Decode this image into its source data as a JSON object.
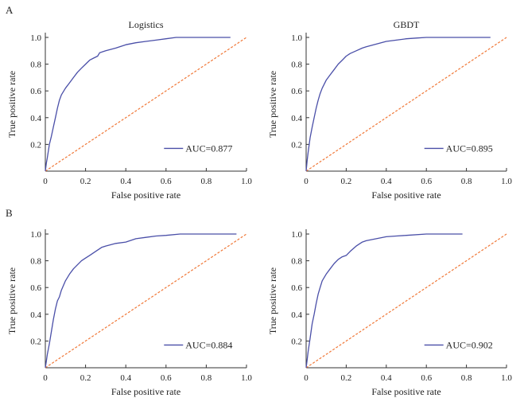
{
  "figure": {
    "panel_labels": [
      "A",
      "B"
    ]
  },
  "colors": {
    "roc_line": "#4a4fa8",
    "diagonal": "#f07838",
    "axis": "#333333",
    "text": "#222222"
  },
  "chart_data": [
    {
      "type": "line",
      "panel": "A",
      "title": "Logistics",
      "xlabel": "False positive rate",
      "ylabel": "True positive rate",
      "xlim": [
        0,
        1.0
      ],
      "ylim": [
        0,
        1.0
      ],
      "xticks": [
        "0",
        "0.2",
        "0.4",
        "0.6",
        "0.8",
        "1.0"
      ],
      "yticks": [
        "0.2",
        "0.4",
        "0.6",
        "0.8",
        "1.0"
      ],
      "grid": false,
      "legend": "bottom-right",
      "series": [
        {
          "name": "AUC=0.877",
          "x": [
            0,
            0.005,
            0.01,
            0.015,
            0.02,
            0.03,
            0.04,
            0.05,
            0.06,
            0.07,
            0.08,
            0.1,
            0.12,
            0.14,
            0.16,
            0.18,
            0.2,
            0.22,
            0.24,
            0.26,
            0.27,
            0.3,
            0.35,
            0.4,
            0.45,
            0.5,
            0.55,
            0.6,
            0.65,
            0.7,
            0.8,
            0.92
          ],
          "y": [
            0,
            0.06,
            0.1,
            0.15,
            0.2,
            0.26,
            0.33,
            0.4,
            0.47,
            0.53,
            0.57,
            0.62,
            0.66,
            0.7,
            0.74,
            0.77,
            0.8,
            0.83,
            0.845,
            0.86,
            0.885,
            0.9,
            0.92,
            0.945,
            0.96,
            0.97,
            0.98,
            0.99,
            1.0,
            1.0,
            1.0,
            1.0
          ]
        },
        {
          "name": "",
          "x": [
            0,
            1.0
          ],
          "y": [
            0,
            1.0
          ]
        }
      ]
    },
    {
      "type": "line",
      "panel": "",
      "title": "GBDT",
      "xlabel": "False positive rate",
      "ylabel": "True positive rate",
      "xlim": [
        0,
        1.0
      ],
      "ylim": [
        0,
        1.0
      ],
      "xticks": [
        "0",
        "0.2",
        "0.4",
        "0.6",
        "0.8",
        "1.0"
      ],
      "yticks": [
        "0.2",
        "0.4",
        "0.6",
        "0.8",
        "1.0"
      ],
      "grid": false,
      "legend": "bottom-right",
      "series": [
        {
          "name": "AUC=0.895",
          "x": [
            0,
            0.005,
            0.01,
            0.02,
            0.03,
            0.04,
            0.05,
            0.06,
            0.07,
            0.08,
            0.1,
            0.12,
            0.14,
            0.16,
            0.18,
            0.2,
            0.22,
            0.25,
            0.28,
            0.3,
            0.35,
            0.4,
            0.45,
            0.5,
            0.55,
            0.6,
            0.65,
            0.7,
            0.8,
            0.92
          ],
          "y": [
            0,
            0.08,
            0.14,
            0.25,
            0.33,
            0.4,
            0.47,
            0.53,
            0.58,
            0.62,
            0.68,
            0.72,
            0.76,
            0.8,
            0.83,
            0.86,
            0.88,
            0.9,
            0.92,
            0.93,
            0.95,
            0.97,
            0.98,
            0.99,
            0.995,
            1.0,
            1.0,
            1.0,
            1.0,
            1.0
          ]
        },
        {
          "name": "",
          "x": [
            0,
            1.0
          ],
          "y": [
            0,
            1.0
          ]
        }
      ]
    },
    {
      "type": "line",
      "panel": "B",
      "title": "",
      "xlabel": "False positive rate",
      "ylabel": "True positive rate",
      "xlim": [
        0,
        1.0
      ],
      "ylim": [
        0,
        1.0
      ],
      "xticks": [
        "0",
        "0.2",
        "0.4",
        "0.6",
        "0.8",
        "1.0"
      ],
      "yticks": [
        "0.2",
        "0.4",
        "0.6",
        "0.8",
        "1.0"
      ],
      "grid": false,
      "legend": "bottom-right",
      "series": [
        {
          "name": "AUC=0.884",
          "x": [
            0,
            0.005,
            0.01,
            0.02,
            0.03,
            0.04,
            0.05,
            0.06,
            0.07,
            0.08,
            0.1,
            0.12,
            0.14,
            0.16,
            0.18,
            0.2,
            0.22,
            0.25,
            0.28,
            0.3,
            0.35,
            0.4,
            0.45,
            0.5,
            0.55,
            0.6,
            0.67,
            0.7,
            0.8,
            0.95
          ],
          "y": [
            0,
            0.05,
            0.1,
            0.18,
            0.27,
            0.36,
            0.44,
            0.5,
            0.53,
            0.58,
            0.65,
            0.7,
            0.74,
            0.77,
            0.8,
            0.82,
            0.84,
            0.87,
            0.9,
            0.91,
            0.93,
            0.94,
            0.965,
            0.975,
            0.985,
            0.99,
            1.0,
            1.0,
            1.0,
            1.0
          ]
        },
        {
          "name": "",
          "x": [
            0,
            1.0
          ],
          "y": [
            0,
            1.0
          ]
        }
      ]
    },
    {
      "type": "line",
      "panel": "",
      "title": "",
      "xlabel": "False positive rate",
      "ylabel": "True positive rate",
      "xlim": [
        0,
        1.0
      ],
      "ylim": [
        0,
        1.0
      ],
      "xticks": [
        "0",
        "0.2",
        "0.4",
        "0.6",
        "0.8",
        "1.0"
      ],
      "yticks": [
        "0.2",
        "0.4",
        "0.6",
        "0.8",
        "1.0"
      ],
      "grid": false,
      "legend": "bottom-right",
      "series": [
        {
          "name": "AUC=0.902",
          "x": [
            0,
            0.005,
            0.01,
            0.02,
            0.03,
            0.04,
            0.05,
            0.06,
            0.07,
            0.08,
            0.1,
            0.12,
            0.14,
            0.16,
            0.18,
            0.2,
            0.22,
            0.25,
            0.28,
            0.3,
            0.35,
            0.4,
            0.45,
            0.5,
            0.6,
            0.7,
            0.78
          ],
          "y": [
            0,
            0.06,
            0.12,
            0.22,
            0.33,
            0.4,
            0.48,
            0.55,
            0.6,
            0.65,
            0.7,
            0.74,
            0.78,
            0.81,
            0.83,
            0.84,
            0.87,
            0.91,
            0.94,
            0.95,
            0.965,
            0.98,
            0.985,
            0.99,
            1.0,
            1.0,
            1.0
          ]
        },
        {
          "name": "",
          "x": [
            0,
            1.0
          ],
          "y": [
            0,
            1.0
          ]
        }
      ]
    }
  ]
}
